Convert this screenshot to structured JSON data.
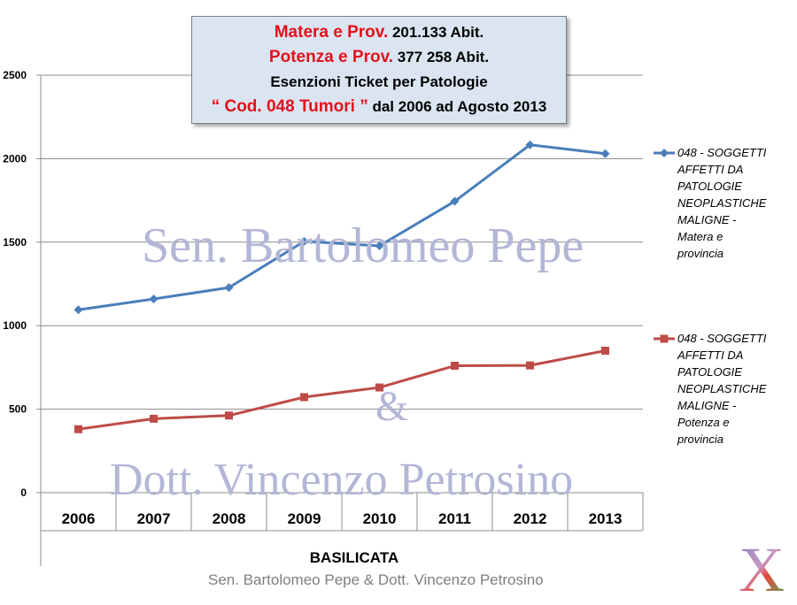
{
  "title_box": {
    "line1_red": "Matera e Prov.",
    "line1_black": " 201.133 Abit.",
    "line2_red": "Potenza e Prov.",
    "line2_black": " 377 258 Abit.",
    "line3": "Esenzioni Ticket per Patologie",
    "line4_red": "“ Cod. 048 Tumori ”",
    "line4_black": " dal 2006 ad Agosto 2013"
  },
  "watermarks": {
    "line1": "Sen. Bartolomeo Pepe",
    "line2": "&",
    "line3": "Dott. Vincenzo Petrosino"
  },
  "footer": "Sen. Bartolomeo Pepe & Dott. Vincenzo Petrosino",
  "logo_text": "X",
  "chart_data": {
    "type": "line",
    "categories": [
      "2006",
      "2007",
      "2008",
      "2009",
      "2010",
      "2011",
      "2012",
      "2013"
    ],
    "xlabel": "BASILICATA",
    "ylabel": "",
    "ylim": [
      0,
      2500
    ],
    "yticks": [
      0,
      500,
      1000,
      1500,
      2000,
      2500
    ],
    "grid": true,
    "legend_position": "right",
    "series": [
      {
        "name": "048 - SOGGETTI AFFETTI DA PATOLOGIE NEOPLASTICHE MALIGNE - Matera e provincia",
        "legend_lines": [
          "048 - SOGGETTI",
          "AFFETTI DA",
          "PATOLOGIE",
          "NEOPLASTICHE",
          "MALIGNE -",
          "Matera e",
          "provincia"
        ],
        "color": "#4a7ebb",
        "marker": "diamond",
        "values": [
          1095,
          1160,
          1228,
          1505,
          1478,
          1745,
          2083,
          2030
        ]
      },
      {
        "name": "048 - SOGGETTI AFFETTI DA PATOLOGIE NEOPLASTICHE MALIGNE - Potenza e provincia",
        "legend_lines": [
          "048 - SOGGETTI",
          "AFFETTI DA",
          "PATOLOGIE",
          "NEOPLASTICHE",
          "MALIGNE -",
          "Potenza e",
          "provincia"
        ],
        "color": "#be4b48",
        "marker": "square",
        "values": [
          380,
          443,
          462,
          572,
          630,
          760,
          762,
          850
        ]
      }
    ]
  }
}
